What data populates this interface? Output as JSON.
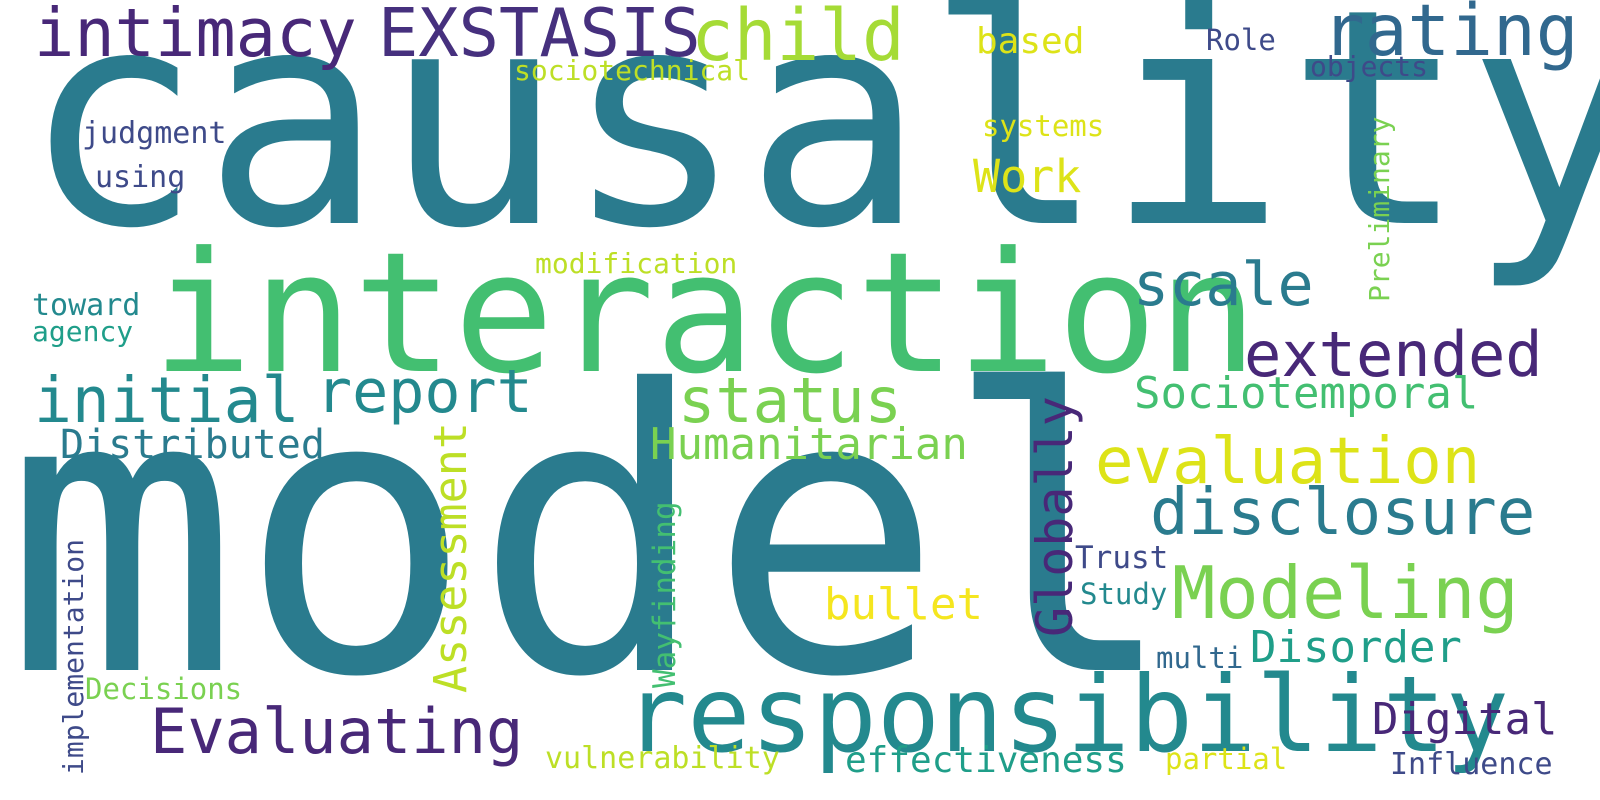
{
  "colors": {
    "background": "#ffffff",
    "teal_dark": "#2a7b8e",
    "teal": "#23898e",
    "green_teal": "#1f9e89",
    "green": "#43bf71",
    "green_light": "#7ad151",
    "lime": "#a5db36",
    "yellow_green": "#bddf26",
    "yellow": "#dde318",
    "yellow_bright": "#f5e61f",
    "blue": "#31688e",
    "indigo": "#3e4a89",
    "purple": "#482878",
    "purple_deep": "#46307e"
  },
  "words": {
    "causality": "causality",
    "model": "model",
    "interaction": "interaction",
    "responsibility": "responsibility",
    "intimacy": "intimacy",
    "exstasis": "EXSTASIS",
    "child": "child",
    "rating": "rating",
    "based": "based",
    "role": "Role",
    "objects": "objects",
    "sociotechnical": "sociotechnical",
    "judgment": "judgment",
    "systems": "systems",
    "using": "using",
    "work": "Work",
    "preliminary": "Preliminary",
    "modification": "modification",
    "scale": "scale",
    "toward": "toward",
    "agency": "agency",
    "extended": "extended",
    "initial": "initial",
    "report": "report",
    "status": "status",
    "sociotemporal": "Sociotemporal",
    "distributed": "Distributed",
    "humanitarian": "Humanitarian",
    "globally": "Globally",
    "evaluation": "evaluation",
    "assessment": "Assessment",
    "disclosure": "disclosure",
    "wayfinding": "Wayfinding",
    "implementation": "implementation",
    "trust": "Trust",
    "modeling": "Modeling",
    "study": "Study",
    "bullet": "bullet",
    "disorder": "Disorder",
    "multi": "multi",
    "decisions": "Decisions",
    "evaluating": "Evaluating",
    "digital": "Digital",
    "vulnerability": "vulnerability",
    "effectiveness": "effectiveness",
    "partial": "partial",
    "influence": "Influence"
  }
}
